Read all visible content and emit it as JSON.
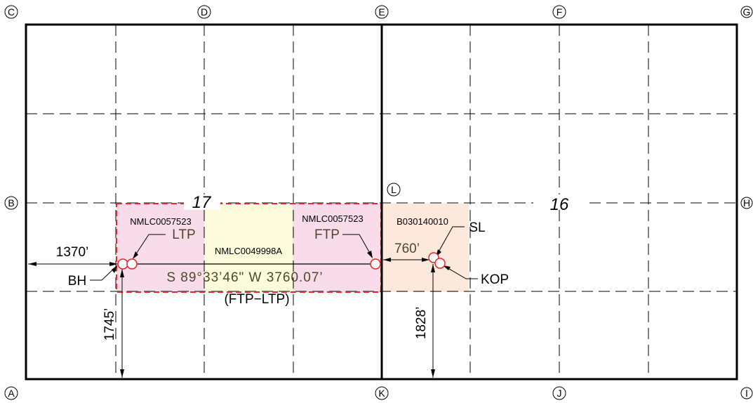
{
  "corners": {
    "c": "C",
    "d": "D",
    "e": "E",
    "f": "F",
    "g": "G",
    "b": "B",
    "h": "H",
    "l": "L",
    "a": "A",
    "k": "K",
    "j": "J",
    "i": "I"
  },
  "sections": {
    "left": "17",
    "right": "16"
  },
  "leases": {
    "ltp_lease": "NMLC0057523",
    "ftp_lease": "NMLC0057523",
    "center_lease": "NMLC0049998A",
    "sl_lease": "B030140010"
  },
  "points": {
    "ltp": "LTP",
    "ftp": "FTP",
    "sl": "SL",
    "kop": "KOP",
    "bh": "BH"
  },
  "dimensions": {
    "west_offset": "1370’",
    "bh_south_offset": "1745’",
    "sl_offset": "760’",
    "sl_south_offset": "1828’"
  },
  "bearing": {
    "text": "S 89°33’46\" W 3760.07’",
    "note": "(FTP−LTP)"
  },
  "colors": {
    "pink_tract": "#f9dcea",
    "yellow_tract": "#fcfbdc",
    "peach_tract": "#fde9db",
    "red_outline": "#e8242a",
    "marker": "#e8242a",
    "line": "#000000"
  }
}
